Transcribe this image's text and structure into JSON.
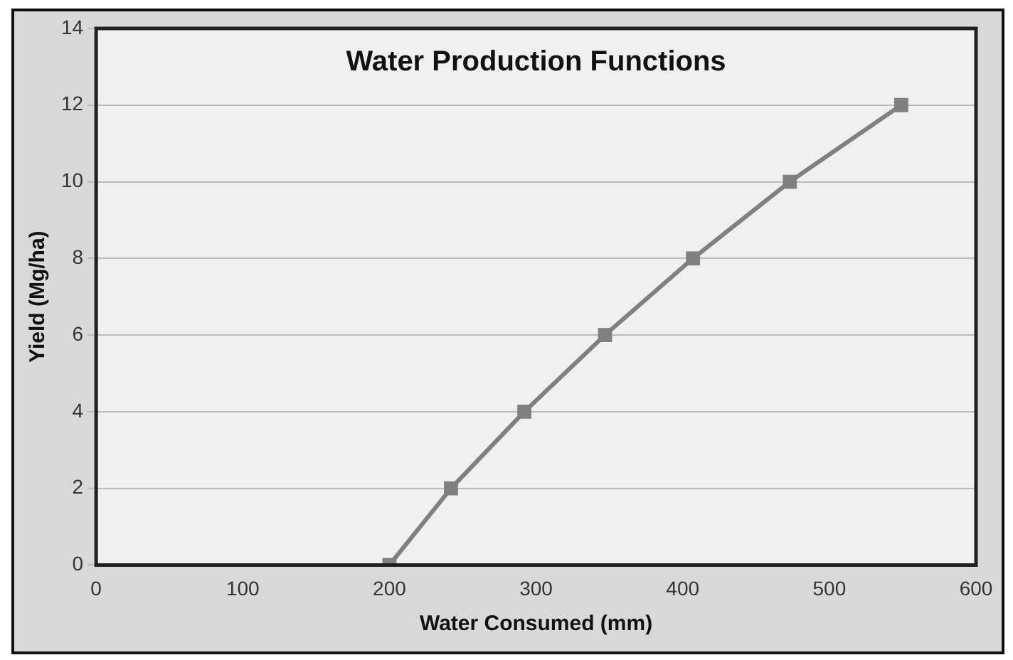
{
  "chart_data": {
    "type": "line",
    "title": "Water Production Functions",
    "xlabel": "Water Consumed (mm)",
    "ylabel": "Yield (Mg/ha)",
    "x": [
      200,
      242,
      292,
      347,
      407,
      473,
      549
    ],
    "series": [
      {
        "color": "#808080",
        "values": [
          0,
          2,
          4,
          6,
          8,
          10,
          12
        ]
      }
    ],
    "xlim": [
      0,
      600
    ],
    "xticks": [
      0,
      100,
      200,
      300,
      400,
      500,
      600
    ],
    "ylim": [
      0,
      14
    ],
    "yticks": [
      0,
      2,
      4,
      6,
      8,
      10,
      12,
      14
    ],
    "grid": "y",
    "legend": false,
    "marker": "square",
    "line_style": "solid"
  }
}
